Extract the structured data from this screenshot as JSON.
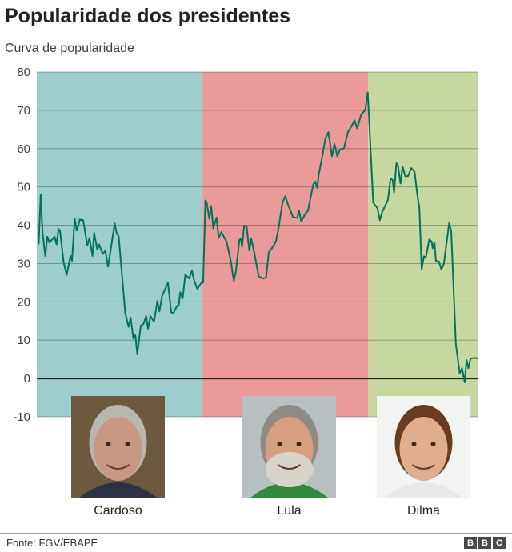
{
  "chart_data": {
    "type": "line",
    "title": "Popularidade dos presidentes",
    "subtitle": "Curva de popularidade",
    "xlabel": "",
    "ylabel": "",
    "ylim": [
      -10,
      80
    ],
    "xlim": [
      1995,
      2016.32
    ],
    "yticks": [
      80,
      70,
      60,
      50,
      40,
      30,
      20,
      10,
      0,
      -10
    ],
    "ytick_labels": [
      "80",
      "70",
      "60",
      "50",
      "40",
      "30",
      "20",
      "10",
      "0",
      "-10"
    ],
    "grid": true,
    "colors": {
      "line": "#00735c",
      "zero": "#222222"
    },
    "eras": [
      {
        "name": "Cardoso",
        "start": 1995,
        "end": 2003,
        "color": "#9dcdcd"
      },
      {
        "name": "Lula",
        "start": 2003,
        "end": 2011,
        "color": "#eb9a9a"
      },
      {
        "name": "Dilma",
        "start": 2011,
        "end": 2016.32,
        "color": "#c6d89f"
      }
    ],
    "series": [
      {
        "name": "Popularidade",
        "x": [
          1995.09,
          1995.19,
          1995.28,
          1995.41,
          1995.51,
          1995.61,
          1995.86,
          1995.95,
          1996.05,
          1996.12,
          1996.29,
          1996.44,
          1996.63,
          1996.7,
          1996.83,
          1996.93,
          1997.08,
          1997.24,
          1997.44,
          1997.54,
          1997.69,
          1997.77,
          1997.92,
          1998.01,
          1998.18,
          1998.31,
          1998.44,
          1998.6,
          1998.76,
          1998.86,
          1998.95,
          1999.27,
          1999.43,
          1999.53,
          1999.66,
          1999.76,
          1999.85,
          2000.02,
          2000.15,
          2000.28,
          2000.37,
          2000.49,
          2000.66,
          2000.82,
          2000.92,
          2001.05,
          2001.33,
          2001.49,
          2001.59,
          2001.78,
          2001.85,
          2001.92,
          2002.04,
          2002.17,
          2002.36,
          2002.49,
          2002.59,
          2002.75,
          2002.98,
          2003.03,
          2003.14,
          2003.2,
          2003.33,
          2003.42,
          2003.52,
          2003.68,
          2003.78,
          2003.91,
          2004.16,
          2004.36,
          2004.51,
          2004.61,
          2004.78,
          2004.85,
          2004.91,
          2005.01,
          2005.13,
          2005.26,
          2005.35,
          2005.51,
          2005.71,
          2005.9,
          2006.07,
          2006.2,
          2006.35,
          2006.54,
          2006.67,
          2006.86,
          2007.0,
          2007.12,
          2007.38,
          2007.58,
          2007.66,
          2007.77,
          2007.96,
          2008.09,
          2008.35,
          2008.44,
          2008.54,
          2008.6,
          2008.8,
          2008.93,
          2009.08,
          2009.25,
          2009.37,
          2009.51,
          2009.63,
          2009.83,
          2010.02,
          2010.21,
          2010.34,
          2010.47,
          2010.66,
          2010.86,
          2010.98,
          2011.07,
          2011.24,
          2011.44,
          2011.56,
          2011.67,
          2011.95,
          2012.08,
          2012.18,
          2012.25,
          2012.36,
          2012.44,
          2012.56,
          2012.66,
          2012.79,
          2012.92,
          2013.08,
          2013.24,
          2013.37,
          2013.47,
          2013.58,
          2013.69,
          2013.78,
          2013.95,
          2014.07,
          2014.11,
          2014.2,
          2014.27,
          2014.42,
          2014.53,
          2014.65,
          2014.91,
          2015.01,
          2015.23,
          2015.42,
          2015.53,
          2015.66,
          2015.75,
          2015.84,
          2015.94,
          2016.13,
          2016.32
        ],
        "values": [
          35,
          48,
          38,
          32,
          37,
          35.5,
          37,
          35,
          39,
          38.6,
          30.5,
          27,
          32,
          30.7,
          41.7,
          38.6,
          41.5,
          41.3,
          34.7,
          36.7,
          32,
          38,
          33.6,
          35,
          32.5,
          33.4,
          29.2,
          34.7,
          40.5,
          37.8,
          37.2,
          17,
          13.5,
          15.9,
          10.4,
          11.3,
          6.3,
          13.8,
          14.2,
          16.3,
          13,
          16.3,
          14.8,
          20.2,
          17.5,
          21.5,
          25,
          17.3,
          17,
          19,
          19,
          22.5,
          20.9,
          27.1,
          26.1,
          28.2,
          25.7,
          23.4,
          25.3,
          25,
          46.5,
          46,
          41.7,
          45,
          39.2,
          42,
          36.7,
          38.2,
          35.7,
          30.9,
          25.5,
          27.8,
          36.1,
          36.5,
          34.4,
          39.9,
          39.6,
          33.4,
          36.5,
          32.6,
          26.7,
          26.1,
          26.3,
          33,
          34,
          35.7,
          39.2,
          45.9,
          47.6,
          45.5,
          42,
          42,
          43.8,
          40.9,
          43,
          43.8,
          50.7,
          51.4,
          49.7,
          52.8,
          58.5,
          62.6,
          64.3,
          58,
          61.2,
          58,
          59.7,
          60.1,
          64.3,
          66,
          67.4,
          65.3,
          68.9,
          70.1,
          74.7,
          64.7,
          45.9,
          44.5,
          41.3,
          43.4,
          46.6,
          52.2,
          51.8,
          48.6,
          56.2,
          55.5,
          50.9,
          55.3,
          52.8,
          52.8,
          54.9,
          53.9,
          48,
          44.5,
          28.4,
          31.9,
          31.5,
          36.3,
          35.7,
          34,
          35.5,
          30.7,
          30.5,
          28.4,
          29.9,
          40.7,
          38.2,
          9,
          1.3,
          2.7,
          -1,
          4.8,
          2.7,
          5.2,
          5.4,
          5.2
        ]
      }
    ],
    "annotations": [
      "Cardoso",
      "Lula",
      "Dilma"
    ]
  },
  "footer": {
    "source": "Fonte: FGV/EBAPE",
    "logo": [
      "B",
      "B",
      "C"
    ]
  }
}
